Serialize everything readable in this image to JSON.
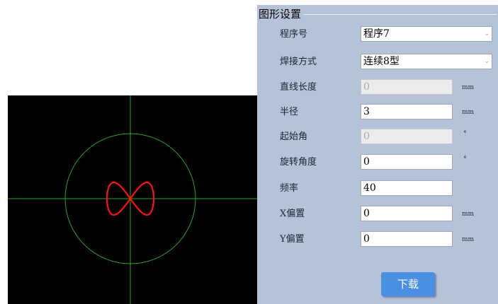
{
  "panel": {
    "title": "图形设置",
    "fields": [
      {
        "label": "程序号",
        "value": "程序7",
        "type": "select",
        "disabled": false,
        "unit": ""
      },
      {
        "label": "焊接方式",
        "value": "连续8型",
        "type": "select",
        "disabled": false,
        "unit": ""
      },
      {
        "label": "直线长度",
        "value": "0",
        "type": "input",
        "disabled": true,
        "unit": "mm"
      },
      {
        "label": "半径",
        "value": "3",
        "type": "input",
        "disabled": false,
        "unit": "mm"
      },
      {
        "label": "起始角",
        "value": "0",
        "type": "input",
        "disabled": true,
        "unit": "°"
      },
      {
        "label": "旋转角度",
        "value": "0",
        "type": "input",
        "disabled": false,
        "unit": "°"
      },
      {
        "label": "频率",
        "value": "40",
        "type": "input",
        "disabled": false,
        "unit": ""
      },
      {
        "label": "X偏置",
        "value": "0",
        "type": "input",
        "disabled": false,
        "unit": "mm"
      },
      {
        "label": "Y偏置",
        "value": "0",
        "type": "input",
        "disabled": false,
        "unit": "mm"
      }
    ],
    "download_label": "下载"
  },
  "preview": {
    "background": "#000000",
    "axis_color": "#22aa22",
    "circle_color": "#22aa22",
    "curve_color": "#ff1010",
    "shape": "figure-eight"
  },
  "colors": {
    "panel_bg": "#b4c3d8",
    "button_bg": "#4a90e2",
    "button_text": "#ffffff"
  }
}
